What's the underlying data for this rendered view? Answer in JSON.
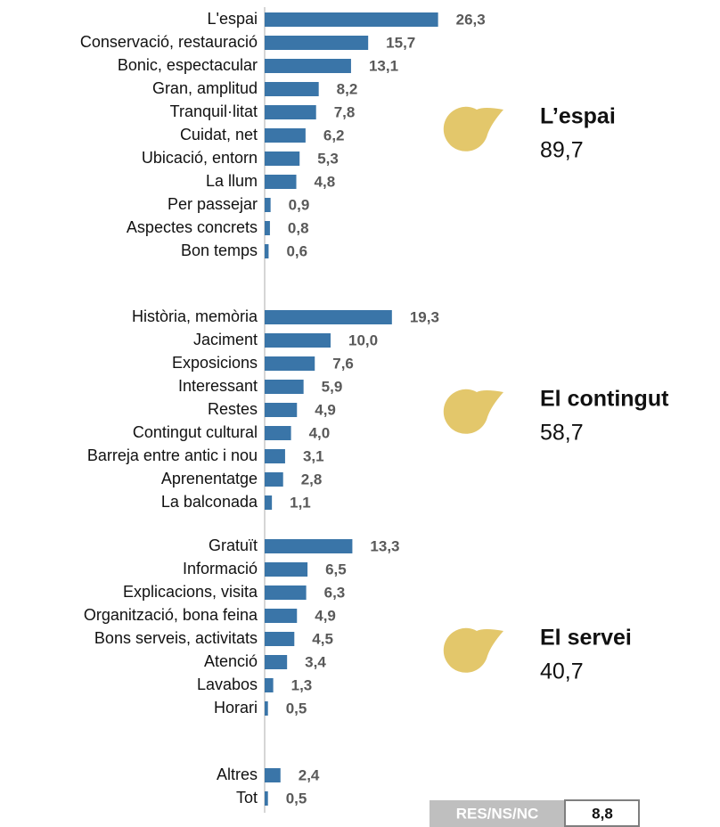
{
  "chart_data": {
    "type": "bar",
    "color": "#3a75a8",
    "xlim": [
      0,
      30
    ],
    "groups": [
      {
        "title": "L’espai",
        "total": 89.7,
        "total_label": "89,7",
        "categories": [
          "L'espai",
          "Conservació, restauració",
          "Bonic, espectacular",
          "Gran, amplitud",
          "Tranquil·litat",
          "Cuidat, net",
          "Ubicació, entorn",
          "La llum",
          "Per passejar",
          "Aspectes concrets",
          "Bon temps"
        ],
        "values": [
          26.3,
          15.7,
          13.1,
          8.2,
          7.8,
          6.2,
          5.3,
          4.8,
          0.9,
          0.8,
          0.6
        ],
        "value_labels": [
          "26,3",
          "15,7",
          "13,1",
          "8,2",
          "7,8",
          "6,2",
          "5,3",
          "4,8",
          "0,9",
          "0,8",
          "0,6"
        ]
      },
      {
        "title": "El contingut",
        "total": 58.7,
        "total_label": "58,7",
        "categories": [
          "Història, memòria",
          "Jaciment",
          "Exposicions",
          "Interessant",
          "Restes",
          "Contingut cultural",
          "Barreja entre antic i nou",
          "Aprenentatge",
          "La balconada"
        ],
        "values": [
          19.3,
          10.0,
          7.6,
          5.9,
          4.9,
          4.0,
          3.1,
          2.8,
          1.1
        ],
        "value_labels": [
          "19,3",
          "10,0",
          "7,6",
          "5,9",
          "4,9",
          "4,0",
          "3,1",
          "2,8",
          "1,1"
        ]
      },
      {
        "title": "El servei",
        "total": 40.7,
        "total_label": "40,7",
        "categories": [
          "Gratuït",
          "Informació",
          "Explicacions, visita",
          "Organització, bona feina",
          "Bons serveis, activitats",
          "Atenció",
          "Lavabos",
          "Horari"
        ],
        "values": [
          13.3,
          6.5,
          6.3,
          4.9,
          4.5,
          3.4,
          1.3,
          0.5
        ],
        "value_labels": [
          "13,3",
          "6,5",
          "6,3",
          "4,9",
          "4,5",
          "3,4",
          "1,3",
          "0,5"
        ]
      },
      {
        "categories": [
          "Altres",
          "Tot"
        ],
        "values": [
          2.4,
          0.5
        ],
        "value_labels": [
          "2,4",
          "0,5"
        ]
      }
    ],
    "box": {
      "label": "RES/NS/NC",
      "value": 8.8,
      "value_label": "8,8"
    }
  }
}
